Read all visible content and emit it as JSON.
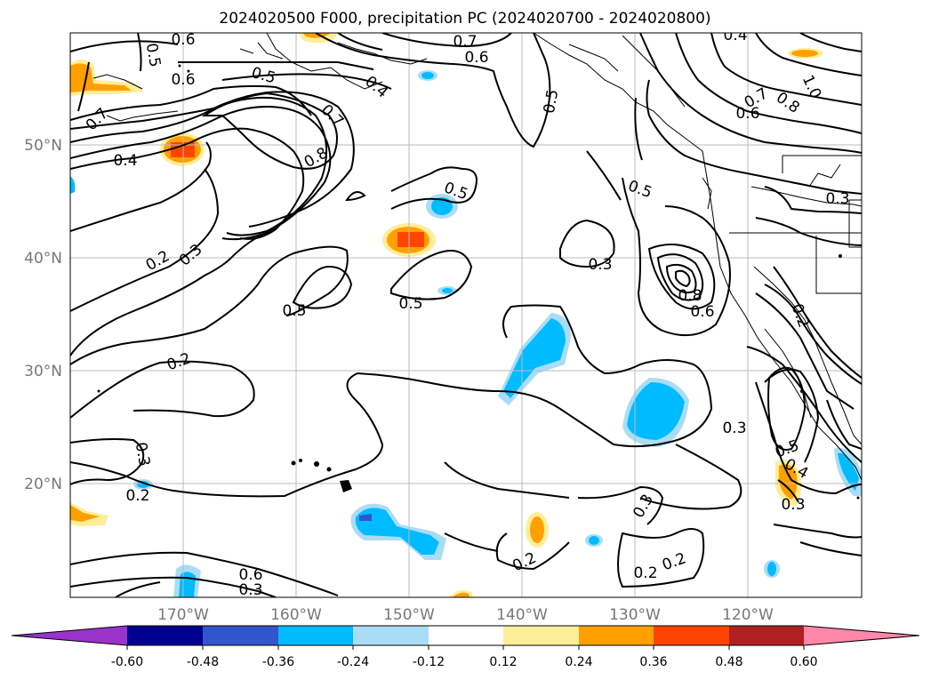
{
  "title": "2024020500 F000, precipitation PC (2024020700 - 2024020800)",
  "lat_labels": [
    "50°N",
    "40°N",
    "30°N",
    "20°N"
  ],
  "lon_labels": [
    "170°W",
    "160°W",
    "150°W",
    "140°W",
    "130°W",
    "120°W"
  ],
  "colorbar": {
    "colors": [
      "#9933cc",
      "#000090",
      "#3355cc",
      "#00bbff",
      "#aaddf5",
      "#ffffff",
      "#ffee99",
      "#ffa000",
      "#ff4400",
      "#b02020",
      "#ff88aa"
    ],
    "ticks": [
      "-0.60",
      "-0.48",
      "-0.36",
      "-0.24",
      "-0.12",
      "0.12",
      "0.24",
      "0.36",
      "0.48",
      "0.60"
    ]
  },
  "contour_labels": [
    "0.6",
    "0.5",
    "0.6",
    "0.7",
    "0.6",
    "0.4",
    "0.5",
    "0.4",
    "0.7",
    "0.8",
    "0.7",
    "0.4",
    "0.5",
    "0.5",
    "0.7",
    "0.6",
    "0.8",
    "1.0",
    "0.5",
    "0.3",
    "0.2",
    "0.3",
    "0.3",
    "0.5",
    "0.5",
    "0.8",
    "0.6",
    "0.2",
    "0.2",
    "0.3",
    "0.3",
    "0.2",
    "0.3",
    "0.5",
    "0.4",
    "0.3",
    "0.2",
    "0.2",
    "0.2",
    "0.3"
  ]
}
